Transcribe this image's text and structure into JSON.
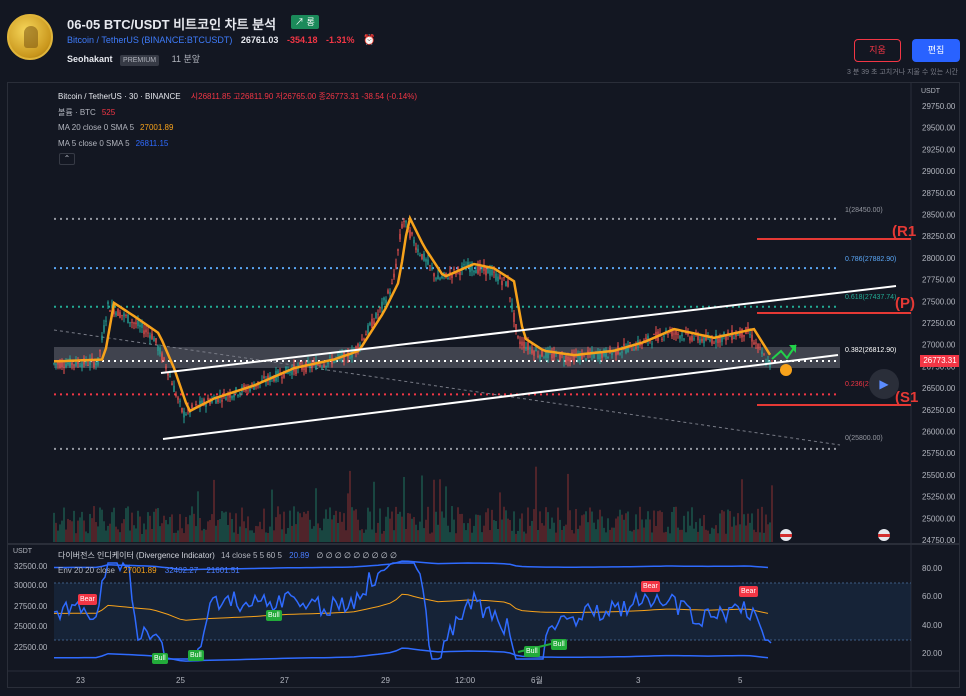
{
  "header": {
    "title": "06-05 BTC/USDT 비트코인 차트 분석",
    "badge": "↗ 롱",
    "symbol_link": "Bitcoin / TetherUS (BINANCE:BTCUSDT)",
    "price": "26761.03",
    "change": "-354.18",
    "change_pct": "-1.31%",
    "author": "Seohakant",
    "author_badge": "PREMIUM",
    "published": "11 분앞",
    "delete_label": "지움",
    "edit_label": "편집",
    "edit_note": "3 분 39 초 고치거나 지울 수 있는 시간"
  },
  "legend": {
    "symbol": "Bitcoin / TetherUS · 30 · BINANCE",
    "ohlc": "시26811.85 고26811.90 저26765.00 종26773.31 -38.54 (-0.14%)",
    "volume_label": "볼륨 · BTC",
    "volume_value": "525",
    "ma20_label": "MA 20 close 0 SMA 5",
    "ma20_value": "27001.89",
    "ma5_label": "MA 5 close 0 SMA 5",
    "ma5_value": "26811.15"
  },
  "price_axis": {
    "currency": "USDT",
    "ticks": [
      "29750.00",
      "29500.00",
      "29250.00",
      "29000.00",
      "28750.00",
      "28500.00",
      "28250.00",
      "28000.00",
      "27750.00",
      "27500.00",
      "27250.00",
      "27000.00",
      "26750.00",
      "26500.00",
      "26250.00",
      "26000.00",
      "25750.00",
      "25500.00",
      "25250.00",
      "25000.00",
      "24750.00"
    ],
    "last_price": "26773.31"
  },
  "fib_levels": [
    {
      "label": "1(28450.00)",
      "price": 28450,
      "color": "#9598a1"
    },
    {
      "label": "0.786(27882.90)",
      "price": 27882.9,
      "color": "#5aa6f5"
    },
    {
      "label": "0.618(27437.74)",
      "price": 27437.74,
      "color": "#22ab94"
    },
    {
      "label": "0.382(26812.90)",
      "price": 26812.9,
      "color": "#ffffff"
    },
    {
      "label": "0.236(26427.13)",
      "price": 26427.13,
      "color": "#f23645"
    },
    {
      "label": "0(25800.00)",
      "price": 25800,
      "color": "#9598a1"
    }
  ],
  "levels": [
    {
      "label": "(R1",
      "color": "#e53935"
    },
    {
      "label": "(P)",
      "color": "#e53935"
    },
    {
      "label": "(S1",
      "color": "#e53935"
    }
  ],
  "indicator": {
    "axis_currency": "USDT",
    "name": "다이버전스 인디케이터 (Divergence Indicator)",
    "params": "14 close 5 5 60 5",
    "value": "20.89",
    "dots": "∅ ∅ ∅ ∅ ∅ ∅ ∅ ∅ ∅",
    "env_label": "Env 20 20 close",
    "env_mid": "27001.89",
    "env_upper": "32402.27",
    "env_lower": "21601.51",
    "left_ticks": [
      "32500.00",
      "30000.00",
      "27500.00",
      "25000.00",
      "22500.00"
    ],
    "right_ticks": [
      "80.00",
      "60.00",
      "40.00",
      "20.00"
    ],
    "signals": [
      "Bear",
      "Bull",
      "Bull",
      "Bull",
      "Bull",
      "Bull",
      "Bear",
      "Bear"
    ]
  },
  "time_axis": [
    "23",
    "25",
    "27",
    "29",
    "12:00",
    "6월",
    "3",
    "5"
  ],
  "icons": {
    "play": "play-icon",
    "alarm": "alarm-clock-icon",
    "collapse": "chevron-up-icon"
  }
}
